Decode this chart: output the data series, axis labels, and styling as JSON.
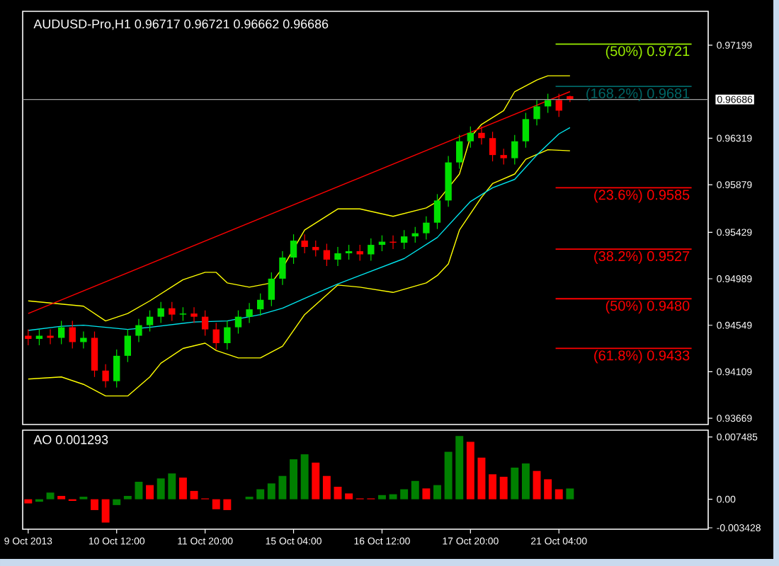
{
  "chart_data": [
    {
      "type": "candlestick",
      "title": "AUDUSD-Pro,H1 0.96717 0.96721 0.96662 0.96686",
      "categories": [
        null,
        null,
        null,
        null,
        null,
        null,
        null,
        null,
        null,
        null,
        null,
        null,
        null,
        null,
        null,
        null,
        null,
        null,
        null,
        null,
        null,
        null,
        null,
        null,
        null,
        null,
        null,
        null,
        null,
        null,
        null,
        null,
        null,
        null,
        null,
        null,
        null,
        null,
        null,
        null,
        null,
        null,
        null,
        null,
        null,
        null,
        null,
        null,
        null,
        null,
        null,
        null,
        null,
        null,
        null,
        null,
        null,
        null,
        null,
        null,
        null,
        null
      ],
      "ohlc": [
        [
          0.9445,
          0.9451,
          0.9436,
          0.9442
        ],
        [
          0.9442,
          0.9451,
          0.9436,
          0.9445
        ],
        [
          0.9445,
          0.9451,
          0.9437,
          0.9443
        ],
        [
          0.9443,
          0.9459,
          0.9437,
          0.9453
        ],
        [
          0.9453,
          0.9459,
          0.9433,
          0.9439
        ],
        [
          0.9439,
          0.9449,
          0.9433,
          0.9443
        ],
        [
          0.9443,
          0.9449,
          0.9406,
          0.9412
        ],
        [
          0.9412,
          0.9418,
          0.9396,
          0.9402
        ],
        [
          0.9402,
          0.9432,
          0.9396,
          0.9426
        ],
        [
          0.9426,
          0.9451,
          0.942,
          0.9445
        ],
        [
          0.9445,
          0.9461,
          0.9439,
          0.9455
        ],
        [
          0.9455,
          0.9469,
          0.9449,
          0.9463
        ],
        [
          0.9463,
          0.9477,
          0.9457,
          0.9471
        ],
        [
          0.9471,
          0.9477,
          0.9459,
          0.9465
        ],
        [
          0.9465,
          0.9472,
          0.9459,
          0.9466
        ],
        [
          0.9466,
          0.9472,
          0.9457,
          0.9463
        ],
        [
          0.9463,
          0.9469,
          0.9445,
          0.9451
        ],
        [
          0.9451,
          0.9457,
          0.9432,
          0.9438
        ],
        [
          0.9438,
          0.9459,
          0.9432,
          0.9453
        ],
        [
          0.9453,
          0.9469,
          0.9447,
          0.9463
        ],
        [
          0.9463,
          0.9476,
          0.9457,
          0.947
        ],
        [
          0.947,
          0.9485,
          0.9464,
          0.9479
        ],
        [
          0.9479,
          0.9505,
          0.9473,
          0.9499
        ],
        [
          0.9499,
          0.9525,
          0.9493,
          0.9519
        ],
        [
          0.9519,
          0.9541,
          0.9513,
          0.9535
        ],
        [
          0.9535,
          0.9541,
          0.9523,
          0.9529
        ],
        [
          0.9529,
          0.9535,
          0.952,
          0.9526
        ],
        [
          0.9526,
          0.9532,
          0.9511,
          0.9517
        ],
        [
          0.9517,
          0.9529,
          0.9511,
          0.9523
        ],
        [
          0.9523,
          0.9531,
          0.9517,
          0.9525
        ],
        [
          0.9525,
          0.9531,
          0.9516,
          0.9522
        ],
        [
          0.9522,
          0.9537,
          0.9516,
          0.9531
        ],
        [
          0.9531,
          0.954,
          0.9525,
          0.9534
        ],
        [
          0.9534,
          0.954,
          0.9527,
          0.9533
        ],
        [
          0.9533,
          0.9545,
          0.9527,
          0.9539
        ],
        [
          0.9539,
          0.9548,
          0.9533,
          0.9542
        ],
        [
          0.9542,
          0.9558,
          0.9536,
          0.9552
        ],
        [
          0.9552,
          0.9579,
          0.9546,
          0.9573
        ],
        [
          0.9573,
          0.9615,
          0.9567,
          0.9609
        ],
        [
          0.9609,
          0.9635,
          0.9603,
          0.9629
        ],
        [
          0.9629,
          0.9643,
          0.9623,
          0.9637
        ],
        [
          0.9637,
          0.9643,
          0.9626,
          0.9632
        ],
        [
          0.9632,
          0.9638,
          0.961,
          0.9616
        ],
        [
          0.9616,
          0.9622,
          0.9607,
          0.9613
        ],
        [
          0.9613,
          0.9635,
          0.9607,
          0.9629
        ],
        [
          0.9629,
          0.9656,
          0.9623,
          0.965
        ],
        [
          0.965,
          0.9668,
          0.9644,
          0.9662
        ],
        [
          0.9662,
          0.9674,
          0.9656,
          0.9668
        ],
        [
          0.9668,
          0.9674,
          0.9652,
          0.9658
        ],
        [
          0.96717,
          0.96721,
          0.96662,
          0.96686
        ],
        null,
        null,
        null,
        null,
        null,
        null,
        null,
        null,
        null,
        null,
        null,
        null
      ],
      "colors": [
        "#ff0000",
        "#00e000",
        "#ff0000",
        "#00e000",
        "#ff0000",
        "#00e000",
        "#ff0000",
        "#ff0000",
        "#00e000",
        "#00e000",
        "#00e000",
        "#00e000",
        "#00e000",
        "#ff0000",
        "#00e000",
        "#ff0000",
        "#ff0000",
        "#ff0000",
        "#00e000",
        "#00e000",
        "#00e000",
        "#00e000",
        "#00e000",
        "#00e000",
        "#00e000",
        "#ff0000",
        "#ff0000",
        "#ff0000",
        "#00e000",
        "#00e000",
        "#ff0000",
        "#00e000",
        "#00e000",
        "#ff0000",
        "#00e000",
        "#00e000",
        "#00e000",
        "#00e000",
        "#00e000",
        "#00e000",
        "#00e000",
        "#ff0000",
        "#ff0000",
        "#ff0000",
        "#00e000",
        "#00e000",
        "#00e000",
        "#00e000",
        "#ff0000",
        "#ff0000",
        null,
        null,
        null,
        null,
        null,
        null,
        null,
        null,
        null,
        null,
        null,
        null
      ],
      "series": [
        {
          "type": "line",
          "color": "#ffff00",
          "values": [
            0.9478,
            null,
            null,
            0.9475,
            null,
            0.9473,
            null,
            0.9459,
            null,
            0.9466,
            null,
            0.9478,
            null,
            null,
            0.9498,
            null,
            0.9505,
            0.9505,
            0.9495,
            null,
            0.9491,
            null,
            0.9495,
            0.9509,
            null,
            0.9545,
            null,
            null,
            0.9565,
            null,
            0.9565,
            null,
            null,
            0.9558,
            null,
            null,
            0.9566,
            0.9572,
            null,
            0.9598,
            0.9633,
            0.9645,
            null,
            0.9658,
            0.9676,
            null,
            0.9687,
            0.9691,
            null,
            0.9691,
            null,
            null,
            null,
            null,
            null,
            null,
            null,
            null,
            null,
            null,
            null,
            null
          ]
        },
        {
          "type": "line",
          "color": "#ffff00",
          "values": [
            0.9404,
            null,
            null,
            0.9406,
            null,
            0.9399,
            null,
            0.9388,
            null,
            0.9388,
            null,
            0.9406,
            0.9419,
            null,
            0.9433,
            null,
            0.9438,
            0.9431,
            null,
            0.9424,
            null,
            0.9424,
            null,
            0.9435,
            null,
            0.9465,
            null,
            null,
            0.9493,
            null,
            0.9491,
            null,
            null,
            0.9486,
            null,
            null,
            0.9495,
            0.9502,
            0.9513,
            0.9545,
            null,
            0.9576,
            0.9589,
            null,
            0.9598,
            0.9612,
            null,
            0.9621,
            null,
            0.962,
            null,
            null,
            null,
            null,
            null,
            null,
            null,
            null,
            null,
            null,
            null,
            null
          ]
        },
        {
          "type": "line",
          "color": "#00e5ee",
          "values": [
            0.945,
            null,
            null,
            0.9454,
            null,
            0.9455,
            null,
            null,
            null,
            0.9451,
            null,
            0.9453,
            null,
            null,
            null,
            0.9458,
            null,
            null,
            0.9459,
            null,
            null,
            0.9465,
            null,
            0.9471,
            null,
            null,
            0.9485,
            null,
            0.9494,
            null,
            0.9502,
            null,
            null,
            null,
            0.9518,
            null,
            null,
            0.9538,
            null,
            null,
            0.9572,
            null,
            0.9585,
            null,
            0.9593,
            null,
            0.9616,
            null,
            0.9636,
            0.9642,
            null,
            null,
            null,
            null,
            null,
            null,
            null,
            null,
            null,
            null,
            null,
            null
          ]
        },
        {
          "type": "line",
          "color": "#ff0000",
          "values": [
            0.9466,
            null,
            null,
            null,
            null,
            null,
            null,
            null,
            null,
            null,
            null,
            null,
            null,
            null,
            null,
            null,
            null,
            null,
            null,
            null,
            null,
            null,
            null,
            null,
            null,
            null,
            null,
            null,
            null,
            null,
            null,
            null,
            null,
            null,
            null,
            null,
            null,
            null,
            null,
            null,
            null,
            null,
            null,
            null,
            null,
            null,
            null,
            null,
            null,
            0.9676,
            null,
            null,
            null,
            null,
            null,
            null,
            null,
            null,
            null,
            null,
            null,
            null
          ]
        }
      ],
      "ref_lines": [
        {
          "axis": "y",
          "value": 0.96686,
          "label": "0.96686",
          "color": "#a0a0a0"
        },
        {
          "axis": "y",
          "value": 0.9721,
          "label": "(50%) 0.9721",
          "color": "#99ee00"
        },
        {
          "axis": "y",
          "value": 0.9681,
          "label": "(168.2%) 0.9681",
          "color": "#006666"
        },
        {
          "axis": "y",
          "value": 0.9585,
          "label": "(23.6%) 0.9585",
          "color": "#ff0000"
        },
        {
          "axis": "y",
          "value": 0.9527,
          "label": "(38.2%) 0.9527",
          "color": "#ff0000"
        },
        {
          "axis": "y",
          "value": 0.948,
          "label": "(50%) 0.9480",
          "color": "#ff0000"
        },
        {
          "axis": "y",
          "value": 0.9433,
          "label": "(61.8%) 0.9433",
          "color": "#ff0000"
        }
      ],
      "ylim": [
        0.9361,
        0.9752
      ],
      "yticks": [
        0.93669,
        0.94109,
        0.94549,
        0.94989,
        0.95429,
        0.95879,
        0.96319,
        0.97199
      ],
      "tick_labels": "y"
    },
    {
      "type": "bar",
      "title": "AO 0.001293",
      "categories": [
        "9 Oct 2013",
        null,
        null,
        null,
        null,
        null,
        null,
        null,
        "10 Oct 12:00",
        null,
        null,
        null,
        null,
        null,
        null,
        null,
        "11 Oct 20:00",
        null,
        null,
        null,
        null,
        null,
        null,
        null,
        "15 Oct 04:00",
        null,
        null,
        null,
        null,
        null,
        null,
        null,
        "16 Oct 12:00",
        null,
        null,
        null,
        null,
        null,
        null,
        null,
        "17 Oct 20:00",
        null,
        null,
        null,
        null,
        null,
        null,
        null,
        "21 Oct 04:00",
        null,
        null,
        null,
        null,
        null,
        null,
        null,
        null,
        null,
        null,
        null,
        null,
        null
      ],
      "values": [
        -0.0005,
        -0.0003,
        0.0008,
        0.0004,
        -0.0002,
        0.0003,
        -0.0013,
        -0.0028,
        -0.0007,
        0.0004,
        0.0021,
        0.0017,
        0.0025,
        0.0031,
        0.0026,
        0.001,
        0.0001,
        -0.0012,
        -0.0013,
        0,
        0.0003,
        0.0012,
        0.0019,
        0.0028,
        0.0048,
        0.0054,
        0.0044,
        0.0028,
        0.0015,
        0.0007,
        0.0001,
        0.0001,
        0.0005,
        0.0006,
        0.0012,
        0.0022,
        0.0013,
        0.0017,
        0.0057,
        0.0076,
        0.0069,
        0.005,
        0.003,
        0.0027,
        0.0038,
        0.0043,
        0.0034,
        0.0024,
        0.0012,
        0.001293,
        null,
        null,
        null,
        null,
        null,
        null,
        null,
        null,
        null,
        null,
        null,
        null
      ],
      "colors": [
        "#ff0000",
        "#008000",
        "#008000",
        "#ff0000",
        "#ff0000",
        "#008000",
        "#ff0000",
        "#ff0000",
        "#008000",
        "#008000",
        "#008000",
        "#ff0000",
        "#008000",
        "#008000",
        "#ff0000",
        "#ff0000",
        "#ff0000",
        "#ff0000",
        "#ff0000",
        "#008000",
        "#008000",
        "#008000",
        "#008000",
        "#008000",
        "#008000",
        "#008000",
        "#ff0000",
        "#ff0000",
        "#ff0000",
        "#ff0000",
        "#ff0000",
        "#ff0000",
        "#008000",
        "#008000",
        "#008000",
        "#008000",
        "#ff0000",
        "#008000",
        "#008000",
        "#008000",
        "#ff0000",
        "#ff0000",
        "#ff0000",
        "#ff0000",
        "#008000",
        "#008000",
        "#ff0000",
        "#ff0000",
        "#ff0000",
        "#008000",
        null,
        null,
        null,
        null,
        null,
        null,
        null,
        null,
        null,
        null,
        null,
        null
      ],
      "ylim": [
        -0.0036,
        0.0083
      ],
      "yticks": [
        {
          "value": -0.003428,
          "label": "-0.003428"
        },
        {
          "value": 0,
          "label": "0.00"
        },
        {
          "value": 0.007485,
          "label": "0.007485"
        }
      ]
    }
  ]
}
